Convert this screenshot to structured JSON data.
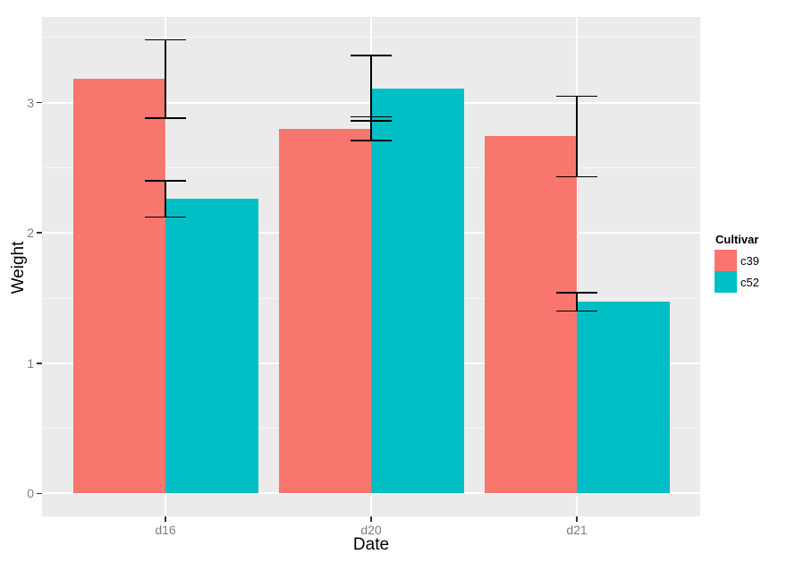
{
  "chart_data": {
    "type": "bar",
    "grouping": "dodged",
    "title": "",
    "xlabel": "Date",
    "ylabel": "Weight",
    "categories": [
      "d16",
      "d20",
      "d21"
    ],
    "series": [
      {
        "name": "c39",
        "color": "#F8766D",
        "values": [
          3.18,
          2.8,
          2.74
        ],
        "se": [
          0.3,
          0.09,
          0.31
        ]
      },
      {
        "name": "c52",
        "color": "#00BFC4",
        "values": [
          2.26,
          3.11,
          1.47
        ],
        "se": [
          0.14,
          0.25,
          0.07
        ]
      }
    ],
    "yticks": [
      0,
      1,
      2,
      3
    ],
    "yticks_minor": [
      0.5,
      1.5,
      2.5,
      3.5
    ],
    "ylim": [
      -0.18,
      3.66
    ],
    "bar_width_units": 0.45,
    "error_bars": {
      "style": "mean ± se",
      "position": "category-center",
      "cap_width_units": 0.2,
      "color": "#000000"
    },
    "legend": {
      "title": "Cultivar",
      "position": "right"
    },
    "style": {
      "panel_bg": "#EBEBEB",
      "grid_major": "#FFFFFF",
      "grid_minor": "#FFFFFF",
      "tick_label_color": "#7E7E7E",
      "tick_mark_color": "#333333",
      "axis_title_color": "#000000"
    }
  }
}
